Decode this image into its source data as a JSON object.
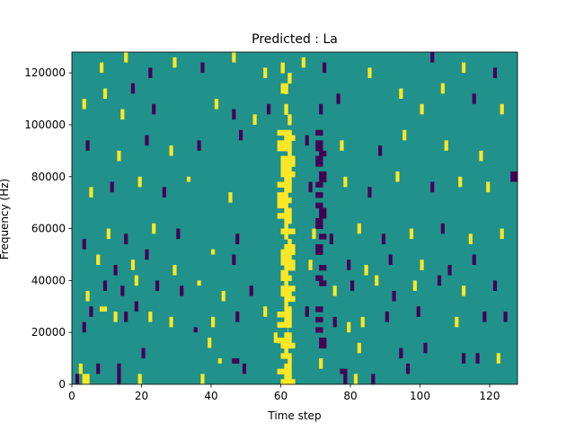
{
  "chart_data": {
    "type": "heatmap",
    "title": "Predicted : La",
    "xlabel": "Time step",
    "ylabel": "Frequency (Hz)",
    "xlim": [
      0,
      128
    ],
    "ylim": [
      0,
      128000
    ],
    "xticks": [
      0,
      20,
      40,
      60,
      80,
      100,
      120
    ],
    "xtick_labels": [
      "0",
      "20",
      "40",
      "60",
      "80",
      "100",
      "120"
    ],
    "yticks": [
      0,
      20000,
      40000,
      60000,
      80000,
      100000,
      120000
    ],
    "ytick_labels": [
      "0",
      "20000",
      "40000",
      "60000",
      "80000",
      "100000",
      "120000"
    ],
    "grid": false,
    "n_time_steps": 128,
    "n_freq_bins": 64,
    "freq_bin_width_hz": 2000,
    "colormap": "viridis",
    "value_range": [
      -1,
      1
    ],
    "colors": {
      "background": "#21918c",
      "positive": "#fde725",
      "negative": "#440154"
    },
    "band_vertical": {
      "positive_time_ranges": [
        [
          59,
          63
        ],
        [
          60,
          64
        ],
        [
          61,
          63
        ]
      ],
      "negative_time_ranges": [
        [
          70,
          72
        ],
        [
          71,
          73
        ]
      ],
      "band_freq_range_hz": [
        0,
        98000
      ]
    },
    "events": [
      {
        "t": 1,
        "f0": 0,
        "f1": 4000,
        "v": -1
      },
      {
        "t": 3,
        "f0": 0,
        "f1": 4000,
        "v": 1
      },
      {
        "t": 4,
        "f0": 0,
        "f1": 4000,
        "v": 1
      },
      {
        "t": 2,
        "f0": 4000,
        "f1": 8000,
        "v": 1
      },
      {
        "t": 7,
        "f0": 4000,
        "f1": 8000,
        "v": -1
      },
      {
        "t": 13,
        "f0": 0,
        "f1": 8000,
        "v": -1
      },
      {
        "t": 19,
        "f0": 0,
        "f1": 4000,
        "v": 1
      },
      {
        "t": 37,
        "f0": 0,
        "f1": 4000,
        "v": 1
      },
      {
        "t": 46,
        "f0": 8000,
        "f1": 10000,
        "v": -1
      },
      {
        "t": 47,
        "f0": 8000,
        "f1": 10000,
        "v": -1
      },
      {
        "t": 42,
        "f0": 8000,
        "f1": 10000,
        "v": 1
      },
      {
        "t": 49,
        "f0": 4000,
        "f1": 8000,
        "v": -1
      },
      {
        "t": 71,
        "f0": 6000,
        "f1": 10000,
        "v": 1
      },
      {
        "t": 77,
        "f0": 4000,
        "f1": 6000,
        "v": -1
      },
      {
        "t": 78,
        "f0": 0,
        "f1": 6000,
        "v": -1
      },
      {
        "t": 81,
        "f0": 0,
        "f1": 4000,
        "v": 1
      },
      {
        "t": 86,
        "f0": 0,
        "f1": 4000,
        "v": -1
      },
      {
        "t": 96,
        "f0": 4000,
        "f1": 8000,
        "v": -1
      },
      {
        "t": 112,
        "f0": 8000,
        "f1": 12000,
        "v": -1
      },
      {
        "t": 116,
        "f0": 8000,
        "f1": 12000,
        "v": -1
      },
      {
        "t": 122,
        "f0": 8000,
        "f1": 12000,
        "v": 1
      },
      {
        "t": 20,
        "f0": 10000,
        "f1": 14000,
        "v": -1
      },
      {
        "t": 39,
        "f0": 14000,
        "f1": 18000,
        "v": 1
      },
      {
        "t": 58,
        "f0": 16000,
        "f1": 20000,
        "v": 1
      },
      {
        "t": 82,
        "f0": 12000,
        "f1": 16000,
        "v": 1
      },
      {
        "t": 94,
        "f0": 10000,
        "f1": 14000,
        "v": -1
      },
      {
        "t": 101,
        "f0": 12000,
        "f1": 16000,
        "v": -1
      },
      {
        "t": 3,
        "f0": 20000,
        "f1": 24000,
        "v": -1
      },
      {
        "t": 5,
        "f0": 26000,
        "f1": 30000,
        "v": -1
      },
      {
        "t": 8,
        "f0": 28000,
        "f1": 30000,
        "v": 1
      },
      {
        "t": 9,
        "f0": 28000,
        "f1": 30000,
        "v": 1
      },
      {
        "t": 12,
        "f0": 24000,
        "f1": 28000,
        "v": 1
      },
      {
        "t": 15,
        "f0": 24000,
        "f1": 28000,
        "v": -1
      },
      {
        "t": 18,
        "f0": 28000,
        "f1": 32000,
        "v": -1
      },
      {
        "t": 22,
        "f0": 24000,
        "f1": 28000,
        "v": 1
      },
      {
        "t": 28,
        "f0": 22000,
        "f1": 26000,
        "v": 1
      },
      {
        "t": 35,
        "f0": 20000,
        "f1": 22000,
        "v": -1
      },
      {
        "t": 40,
        "f0": 22000,
        "f1": 26000,
        "v": 1
      },
      {
        "t": 47,
        "f0": 24000,
        "f1": 28000,
        "v": -1
      },
      {
        "t": 55,
        "f0": 26000,
        "f1": 30000,
        "v": 1
      },
      {
        "t": 67,
        "f0": 26000,
        "f1": 30000,
        "v": -1
      },
      {
        "t": 75,
        "f0": 22000,
        "f1": 26000,
        "v": -1
      },
      {
        "t": 79,
        "f0": 20000,
        "f1": 24000,
        "v": 1
      },
      {
        "t": 83,
        "f0": 22000,
        "f1": 26000,
        "v": 1
      },
      {
        "t": 90,
        "f0": 24000,
        "f1": 28000,
        "v": -1
      },
      {
        "t": 99,
        "f0": 26000,
        "f1": 30000,
        "v": -1
      },
      {
        "t": 110,
        "f0": 22000,
        "f1": 26000,
        "v": 1
      },
      {
        "t": 118,
        "f0": 24000,
        "f1": 28000,
        "v": -1
      },
      {
        "t": 124,
        "f0": 24000,
        "f1": 28000,
        "v": -1
      },
      {
        "t": 4,
        "f0": 32000,
        "f1": 36000,
        "v": 1
      },
      {
        "t": 9,
        "f0": 36000,
        "f1": 40000,
        "v": -1
      },
      {
        "t": 14,
        "f0": 34000,
        "f1": 38000,
        "v": -1
      },
      {
        "t": 18,
        "f0": 38000,
        "f1": 42000,
        "v": 1
      },
      {
        "t": 24,
        "f0": 36000,
        "f1": 40000,
        "v": -1
      },
      {
        "t": 31,
        "f0": 34000,
        "f1": 38000,
        "v": -1
      },
      {
        "t": 36,
        "f0": 38000,
        "f1": 40000,
        "v": 1
      },
      {
        "t": 43,
        "f0": 32000,
        "f1": 36000,
        "v": 1
      },
      {
        "t": 51,
        "f0": 34000,
        "f1": 38000,
        "v": -1
      },
      {
        "t": 75,
        "f0": 34000,
        "f1": 38000,
        "v": 1
      },
      {
        "t": 80,
        "f0": 36000,
        "f1": 40000,
        "v": -1
      },
      {
        "t": 87,
        "f0": 38000,
        "f1": 42000,
        "v": 1
      },
      {
        "t": 92,
        "f0": 32000,
        "f1": 36000,
        "v": -1
      },
      {
        "t": 98,
        "f0": 36000,
        "f1": 40000,
        "v": 1
      },
      {
        "t": 105,
        "f0": 38000,
        "f1": 42000,
        "v": -1
      },
      {
        "t": 112,
        "f0": 34000,
        "f1": 38000,
        "v": 1
      },
      {
        "t": 121,
        "f0": 36000,
        "f1": 40000,
        "v": -1
      },
      {
        "t": 7,
        "f0": 46000,
        "f1": 50000,
        "v": 1
      },
      {
        "t": 12,
        "f0": 42000,
        "f1": 46000,
        "v": -1
      },
      {
        "t": 17,
        "f0": 44000,
        "f1": 48000,
        "v": 1
      },
      {
        "t": 21,
        "f0": 48000,
        "f1": 52000,
        "v": -1
      },
      {
        "t": 29,
        "f0": 42000,
        "f1": 46000,
        "v": 1
      },
      {
        "t": 40,
        "f0": 50000,
        "f1": 52000,
        "v": 1
      },
      {
        "t": 46,
        "f0": 46000,
        "f1": 50000,
        "v": -1
      },
      {
        "t": 68,
        "f0": 44000,
        "f1": 48000,
        "v": 1
      },
      {
        "t": 79,
        "f0": 44000,
        "f1": 48000,
        "v": -1
      },
      {
        "t": 84,
        "f0": 42000,
        "f1": 46000,
        "v": 1
      },
      {
        "t": 91,
        "f0": 46000,
        "f1": 50000,
        "v": -1
      },
      {
        "t": 100,
        "f0": 44000,
        "f1": 48000,
        "v": 1
      },
      {
        "t": 108,
        "f0": 42000,
        "f1": 46000,
        "v": -1
      },
      {
        "t": 115,
        "f0": 46000,
        "f1": 50000,
        "v": -1
      },
      {
        "t": 3,
        "f0": 52000,
        "f1": 56000,
        "v": -1
      },
      {
        "t": 10,
        "f0": 56000,
        "f1": 60000,
        "v": 1
      },
      {
        "t": 15,
        "f0": 54000,
        "f1": 58000,
        "v": -1
      },
      {
        "t": 23,
        "f0": 58000,
        "f1": 62000,
        "v": 1
      },
      {
        "t": 30,
        "f0": 56000,
        "f1": 60000,
        "v": -1
      },
      {
        "t": 47,
        "f0": 54000,
        "f1": 58000,
        "v": -1
      },
      {
        "t": 69,
        "f0": 56000,
        "f1": 60000,
        "v": 1
      },
      {
        "t": 74,
        "f0": 54000,
        "f1": 58000,
        "v": -1
      },
      {
        "t": 82,
        "f0": 58000,
        "f1": 62000,
        "v": 1
      },
      {
        "t": 89,
        "f0": 54000,
        "f1": 58000,
        "v": -1
      },
      {
        "t": 97,
        "f0": 56000,
        "f1": 60000,
        "v": 1
      },
      {
        "t": 106,
        "f0": 58000,
        "f1": 62000,
        "v": -1
      },
      {
        "t": 114,
        "f0": 54000,
        "f1": 58000,
        "v": 1
      },
      {
        "t": 123,
        "f0": 56000,
        "f1": 60000,
        "v": 1
      },
      {
        "t": 5,
        "f0": 72000,
        "f1": 76000,
        "v": 1
      },
      {
        "t": 11,
        "f0": 74000,
        "f1": 78000,
        "v": -1
      },
      {
        "t": 19,
        "f0": 76000,
        "f1": 80000,
        "v": 1
      },
      {
        "t": 26,
        "f0": 72000,
        "f1": 76000,
        "v": -1
      },
      {
        "t": 33,
        "f0": 78000,
        "f1": 80000,
        "v": 1
      },
      {
        "t": 45,
        "f0": 70000,
        "f1": 74000,
        "v": 1
      },
      {
        "t": 68,
        "f0": 74000,
        "f1": 78000,
        "v": -1
      },
      {
        "t": 78,
        "f0": 76000,
        "f1": 80000,
        "v": 1
      },
      {
        "t": 85,
        "f0": 72000,
        "f1": 76000,
        "v": -1
      },
      {
        "t": 93,
        "f0": 78000,
        "f1": 82000,
        "v": 1
      },
      {
        "t": 103,
        "f0": 74000,
        "f1": 78000,
        "v": -1
      },
      {
        "t": 111,
        "f0": 76000,
        "f1": 80000,
        "v": 1
      },
      {
        "t": 119,
        "f0": 74000,
        "f1": 78000,
        "v": 1
      },
      {
        "t": 126,
        "f0": 78000,
        "f1": 82000,
        "v": -1
      },
      {
        "t": 127,
        "f0": 78000,
        "f1": 82000,
        "v": -1
      },
      {
        "t": 4,
        "f0": 90000,
        "f1": 94000,
        "v": -1
      },
      {
        "t": 13,
        "f0": 86000,
        "f1": 90000,
        "v": 1
      },
      {
        "t": 21,
        "f0": 92000,
        "f1": 96000,
        "v": -1
      },
      {
        "t": 28,
        "f0": 88000,
        "f1": 92000,
        "v": 1
      },
      {
        "t": 36,
        "f0": 90000,
        "f1": 94000,
        "v": -1
      },
      {
        "t": 48,
        "f0": 94000,
        "f1": 98000,
        "v": -1
      },
      {
        "t": 67,
        "f0": 92000,
        "f1": 96000,
        "v": -1
      },
      {
        "t": 77,
        "f0": 90000,
        "f1": 94000,
        "v": 1
      },
      {
        "t": 88,
        "f0": 88000,
        "f1": 92000,
        "v": -1
      },
      {
        "t": 95,
        "f0": 94000,
        "f1": 98000,
        "v": 1
      },
      {
        "t": 107,
        "f0": 90000,
        "f1": 94000,
        "v": 1
      },
      {
        "t": 117,
        "f0": 86000,
        "f1": 90000,
        "v": 1
      },
      {
        "t": 3,
        "f0": 106000,
        "f1": 110000,
        "v": 1
      },
      {
        "t": 9,
        "f0": 110000,
        "f1": 114000,
        "v": 1
      },
      {
        "t": 14,
        "f0": 102000,
        "f1": 106000,
        "v": 1
      },
      {
        "t": 17,
        "f0": 112000,
        "f1": 116000,
        "v": -1
      },
      {
        "t": 23,
        "f0": 104000,
        "f1": 108000,
        "v": -1
      },
      {
        "t": 41,
        "f0": 106000,
        "f1": 110000,
        "v": 1
      },
      {
        "t": 46,
        "f0": 102000,
        "f1": 106000,
        "v": -1
      },
      {
        "t": 52,
        "f0": 100000,
        "f1": 104000,
        "v": 1
      },
      {
        "t": 56,
        "f0": 104000,
        "f1": 108000,
        "v": -1
      },
      {
        "t": 60,
        "f0": 112000,
        "f1": 116000,
        "v": 1
      },
      {
        "t": 71,
        "f0": 104000,
        "f1": 108000,
        "v": -1
      },
      {
        "t": 76,
        "f0": 108000,
        "f1": 112000,
        "v": -1
      },
      {
        "t": 94,
        "f0": 110000,
        "f1": 114000,
        "v": 1
      },
      {
        "t": 100,
        "f0": 104000,
        "f1": 108000,
        "v": 1
      },
      {
        "t": 106,
        "f0": 112000,
        "f1": 116000,
        "v": 1
      },
      {
        "t": 115,
        "f0": 108000,
        "f1": 112000,
        "v": -1
      },
      {
        "t": 123,
        "f0": 104000,
        "f1": 108000,
        "v": 1
      },
      {
        "t": 8,
        "f0": 120000,
        "f1": 124000,
        "v": 1
      },
      {
        "t": 15,
        "f0": 124000,
        "f1": 128000,
        "v": 1
      },
      {
        "t": 22,
        "f0": 118000,
        "f1": 122000,
        "v": -1
      },
      {
        "t": 29,
        "f0": 122000,
        "f1": 126000,
        "v": 1
      },
      {
        "t": 37,
        "f0": 120000,
        "f1": 124000,
        "v": -1
      },
      {
        "t": 46,
        "f0": 124000,
        "f1": 128000,
        "v": 1
      },
      {
        "t": 55,
        "f0": 118000,
        "f1": 122000,
        "v": 1
      },
      {
        "t": 66,
        "f0": 122000,
        "f1": 126000,
        "v": 1
      },
      {
        "t": 72,
        "f0": 120000,
        "f1": 124000,
        "v": -1
      },
      {
        "t": 85,
        "f0": 118000,
        "f1": 122000,
        "v": 1
      },
      {
        "t": 103,
        "f0": 124000,
        "f1": 128000,
        "v": -1
      },
      {
        "t": 112,
        "f0": 120000,
        "f1": 124000,
        "v": 1
      },
      {
        "t": 121,
        "f0": 118000,
        "f1": 122000,
        "v": -1
      }
    ]
  }
}
